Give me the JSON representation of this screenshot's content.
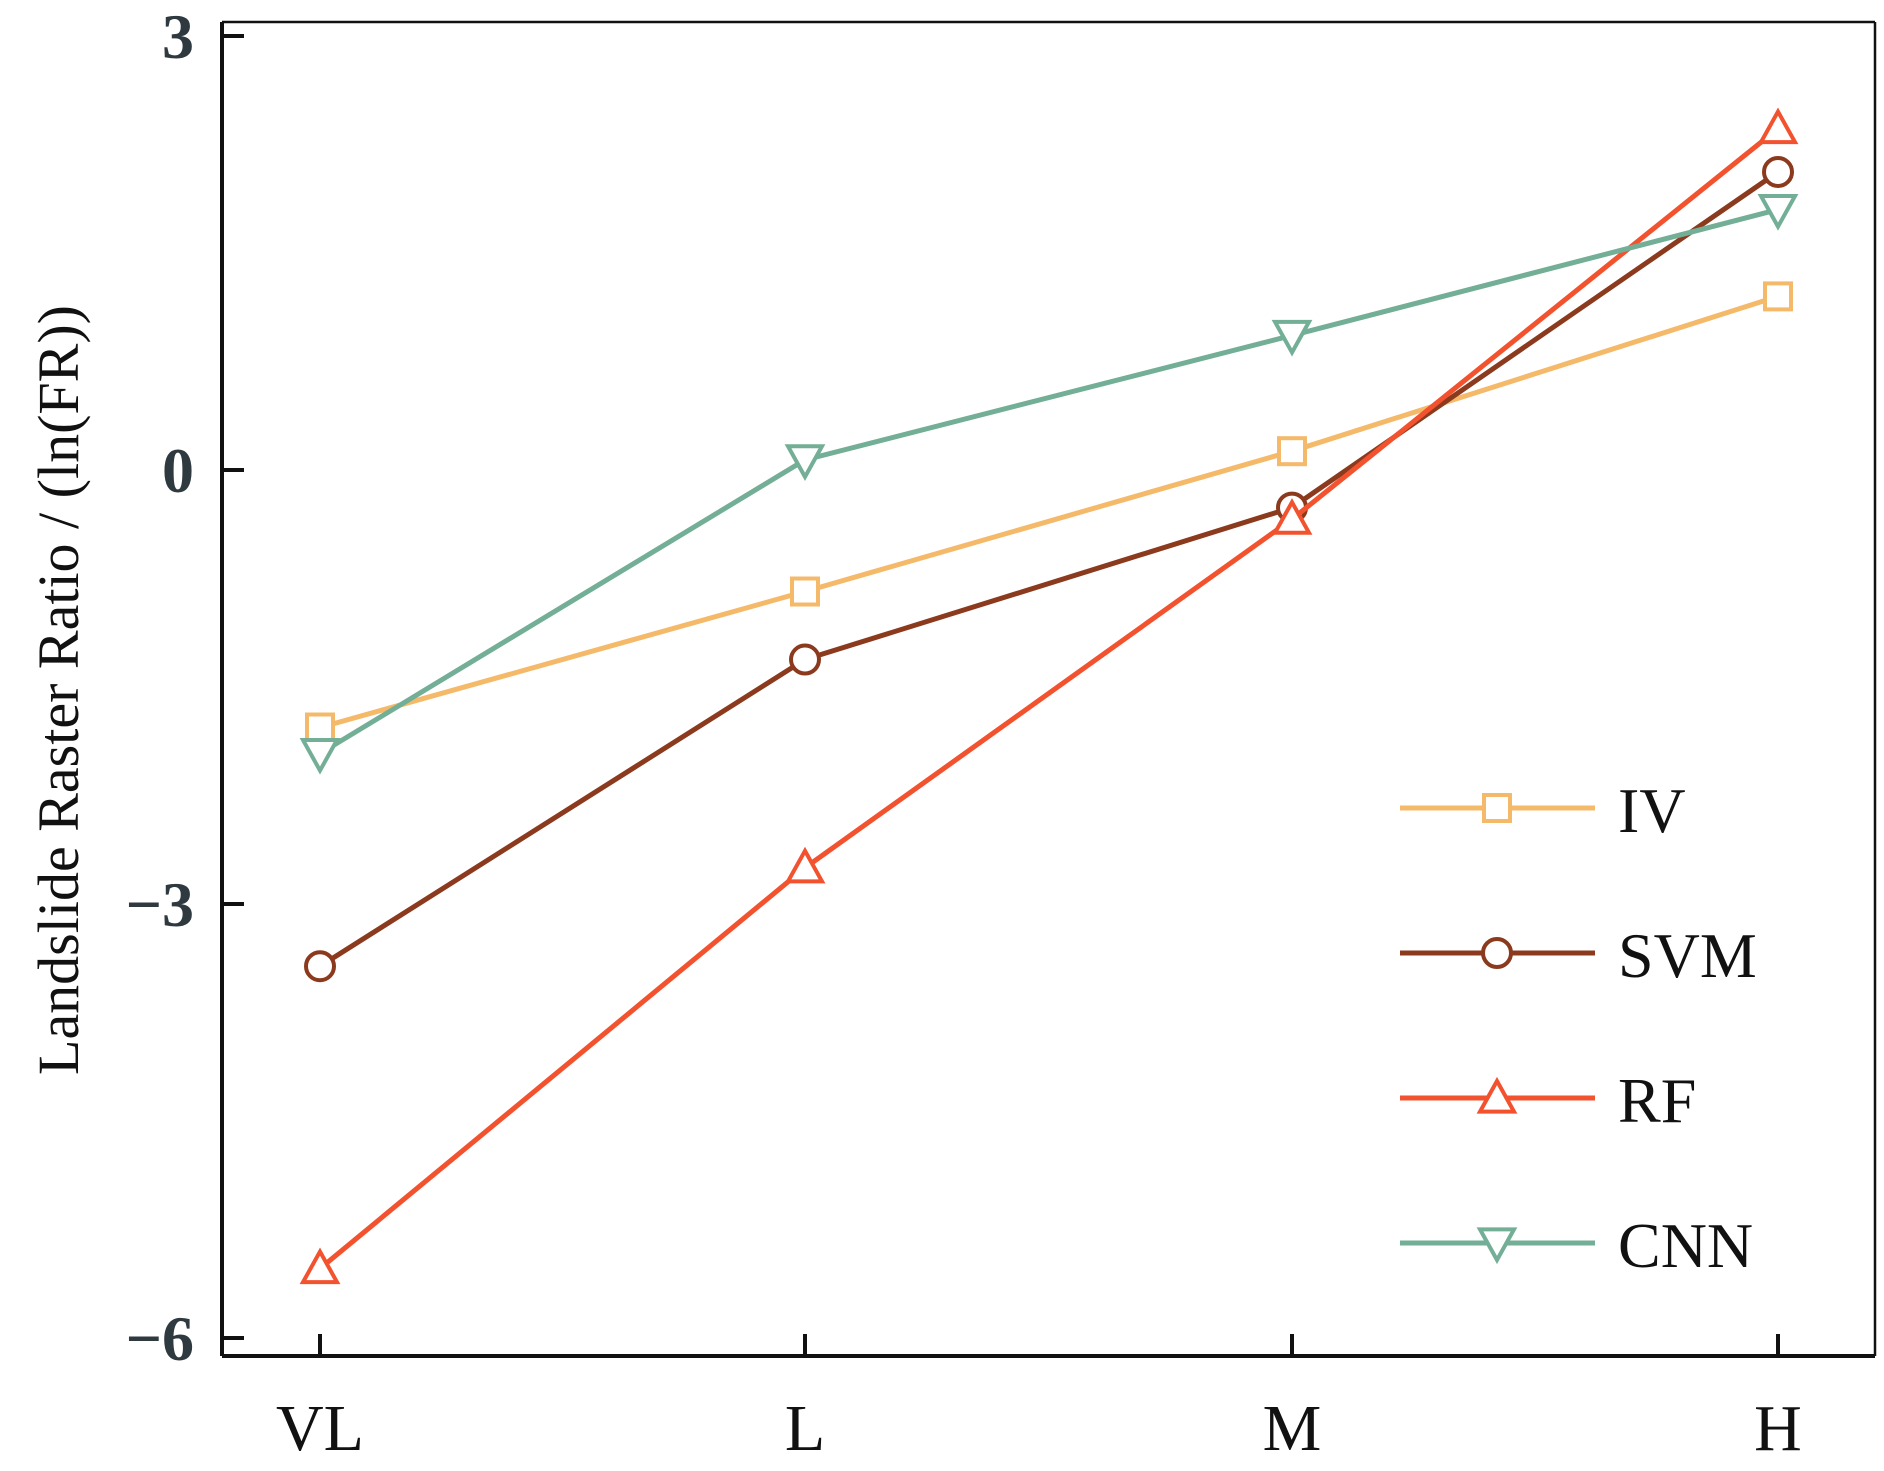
{
  "chart_data": {
    "type": "line",
    "title": "",
    "xlabel": "",
    "ylabel": "Landslide Raster Ratio / (ln(FR))",
    "categories": [
      "VL",
      "L",
      "M",
      "H"
    ],
    "ylim": [
      -6,
      3
    ],
    "yticks": [
      3,
      0,
      -3,
      -6
    ],
    "ytick_labels": [
      "3",
      "0",
      "−3",
      "−6"
    ],
    "legend_position": "bottom-right",
    "series": [
      {
        "name": "IV",
        "marker": "square",
        "color": "#F5B96A",
        "values": [
          -1.78,
          -0.84,
          0.13,
          1.2
        ]
      },
      {
        "name": "SVM",
        "marker": "circle",
        "color": "#8B3A1E",
        "values": [
          -3.43,
          -1.31,
          -0.26,
          2.06
        ]
      },
      {
        "name": "RF",
        "marker": "triangle-up",
        "color": "#F2522E",
        "values": [
          -5.52,
          -2.75,
          -0.34,
          2.36
        ]
      },
      {
        "name": "CNN",
        "marker": "triangle-down",
        "color": "#73AE96",
        "values": [
          -1.96,
          0.07,
          0.93,
          1.8
        ]
      }
    ]
  }
}
